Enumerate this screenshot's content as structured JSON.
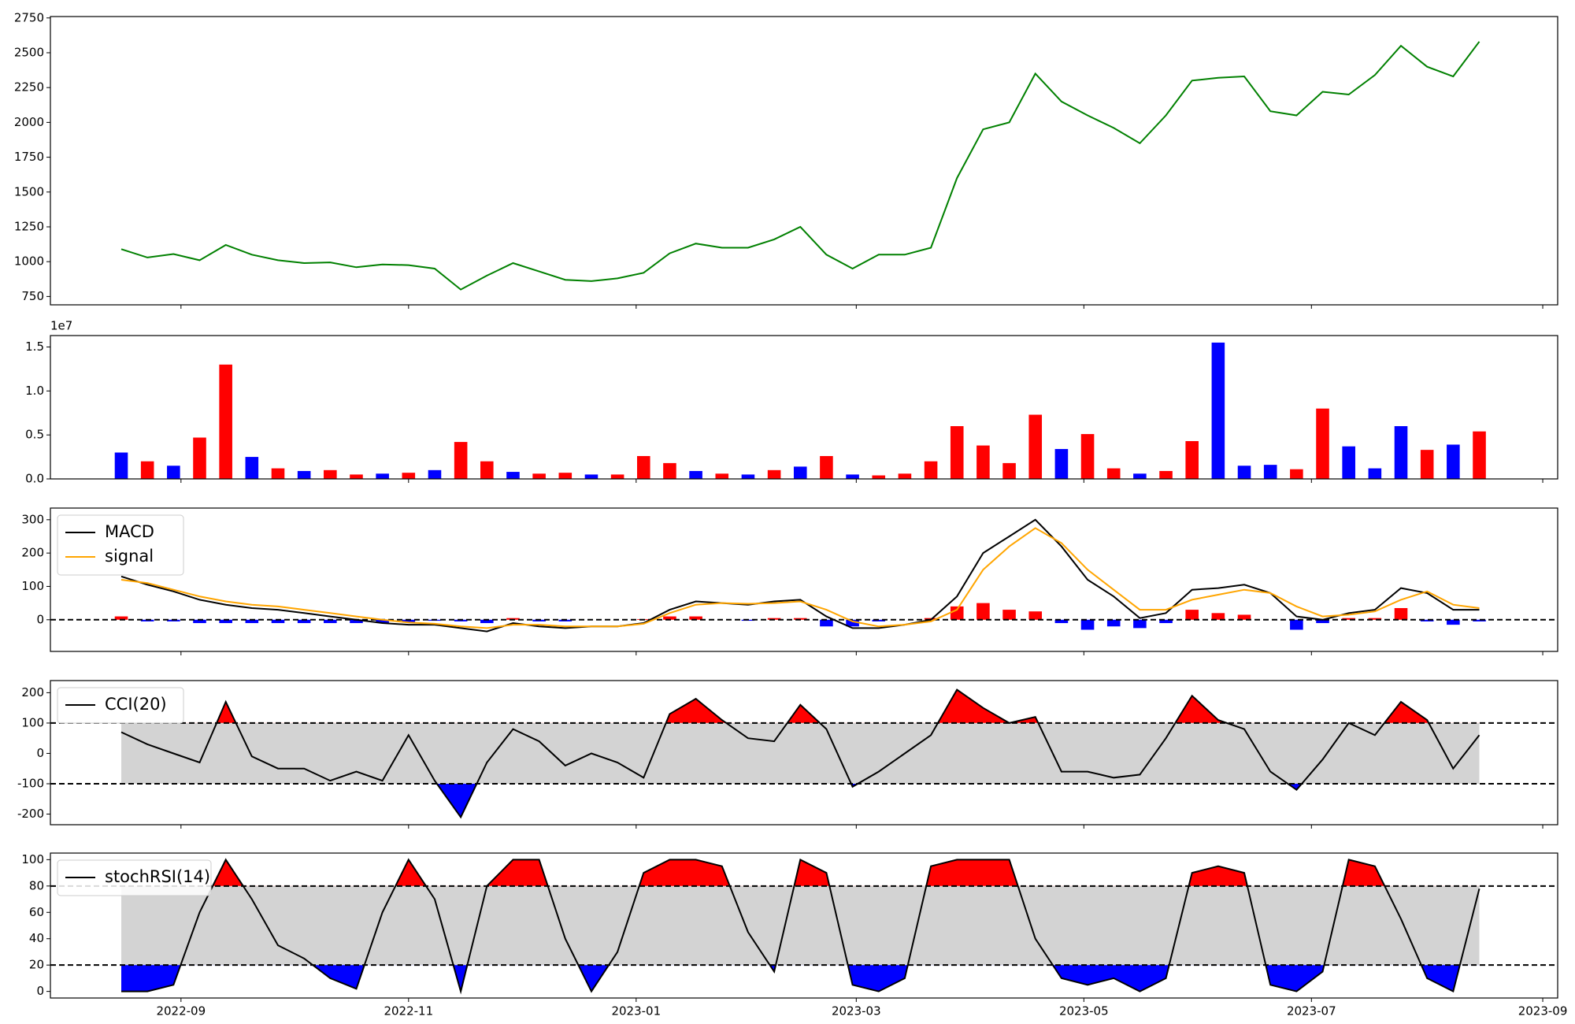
{
  "chart_data": [
    {
      "type": "line",
      "x": [
        "2022-08-16",
        "2022-08-23",
        "2022-08-30",
        "2022-09-06",
        "2022-09-13",
        "2022-09-20",
        "2022-09-27",
        "2022-10-04",
        "2022-10-11",
        "2022-10-18",
        "2022-10-25",
        "2022-11-01",
        "2022-11-08",
        "2022-11-15",
        "2022-11-22",
        "2022-11-29",
        "2022-12-06",
        "2022-12-13",
        "2022-12-20",
        "2022-12-27",
        "2023-01-03",
        "2023-01-10",
        "2023-01-17",
        "2023-01-24",
        "2023-01-31",
        "2023-02-07",
        "2023-02-14",
        "2023-02-21",
        "2023-02-28",
        "2023-03-07",
        "2023-03-14",
        "2023-03-21",
        "2023-03-28",
        "2023-04-04",
        "2023-04-11",
        "2023-04-18",
        "2023-04-25",
        "2023-05-02",
        "2023-05-09",
        "2023-05-16",
        "2023-05-23",
        "2023-05-30",
        "2023-06-06",
        "2023-06-13",
        "2023-06-20",
        "2023-06-27",
        "2023-07-04",
        "2023-07-11",
        "2023-07-18",
        "2023-07-25",
        "2023-08-01",
        "2023-08-08",
        "2023-08-15"
      ],
      "series": [
        {
          "color": "#008000",
          "values": [
            1090,
            1030,
            1055,
            1010,
            1120,
            1050,
            1010,
            990,
            995,
            960,
            980,
            975,
            950,
            800,
            900,
            990,
            930,
            870,
            860,
            880,
            920,
            1060,
            1130,
            1100,
            1100,
            1160,
            1250,
            1050,
            950,
            1050,
            1050,
            1100,
            1600,
            1950,
            2000,
            2350,
            2150,
            2050,
            1960,
            1850,
            2050,
            2300,
            2320,
            2330,
            2080,
            2050,
            2220,
            2200,
            2340,
            2550,
            2400,
            2330,
            2580
          ]
        }
      ],
      "ylim": [
        690,
        2760
      ],
      "yticks": [
        750,
        1000,
        1250,
        1500,
        1750,
        2000,
        2250,
        2500,
        2750
      ]
    },
    {
      "type": "bar",
      "offset_label": "1e7",
      "values": [
        3000000,
        2000000,
        1500000,
        4700000,
        13000000,
        2500000,
        1200000,
        900000,
        1000000,
        500000,
        600000,
        700000,
        1000000,
        4200000,
        2000000,
        800000,
        600000,
        700000,
        500000,
        500000,
        2600000,
        1800000,
        900000,
        600000,
        500000,
        1000000,
        1400000,
        2600000,
        500000,
        400000,
        600000,
        2000000,
        6000000,
        3800000,
        1800000,
        7300000,
        3400000,
        5100000,
        1200000,
        600000,
        900000,
        4300000,
        15500000,
        1500000,
        1600000,
        1100000,
        8000000,
        3700000,
        1200000,
        6000000,
        3300000,
        3900000,
        5400000
      ],
      "colors": [
        "blue",
        "red",
        "blue",
        "red",
        "red",
        "blue",
        "red",
        "blue",
        "red",
        "red",
        "blue",
        "red",
        "blue",
        "red",
        "red",
        "blue",
        "red",
        "red",
        "blue",
        "red",
        "red",
        "red",
        "blue",
        "red",
        "blue",
        "red",
        "blue",
        "red",
        "blue",
        "red",
        "red",
        "red",
        "red",
        "red",
        "red",
        "red",
        "blue",
        "red",
        "red",
        "blue",
        "red",
        "red",
        "blue",
        "blue",
        "blue",
        "red",
        "red",
        "blue",
        "blue",
        "blue",
        "red",
        "blue",
        "red"
      ],
      "ylim": [
        0,
        16300000
      ],
      "yticks": [
        {
          "value": 0,
          "label": "0.0"
        },
        {
          "value": 5000000,
          "label": "0.5"
        },
        {
          "value": 10000000,
          "label": "1.0"
        },
        {
          "value": 15000000,
          "label": "1.5"
        }
      ]
    },
    {
      "type": "macd",
      "series": [
        {
          "name": "MACD",
          "color": "#000000",
          "values": [
            130,
            105,
            85,
            60,
            45,
            35,
            30,
            20,
            10,
            0,
            -10,
            -15,
            -15,
            -25,
            -35,
            -10,
            -20,
            -25,
            -20,
            -20,
            -10,
            30,
            55,
            50,
            45,
            55,
            60,
            10,
            -25,
            -25,
            -15,
            0,
            70,
            200,
            250,
            300,
            220,
            120,
            70,
            5,
            20,
            90,
            95,
            105,
            80,
            10,
            0,
            20,
            30,
            95,
            80,
            30,
            30
          ]
        },
        {
          "name": "signal",
          "color": "#ffa500",
          "values": [
            120,
            110,
            90,
            70,
            55,
            45,
            40,
            30,
            20,
            10,
            0,
            -8,
            -12,
            -20,
            -25,
            -15,
            -15,
            -20,
            -20,
            -20,
            -12,
            20,
            45,
            50,
            48,
            50,
            55,
            30,
            -5,
            -20,
            -15,
            -5,
            30,
            150,
            220,
            275,
            230,
            150,
            90,
            30,
            30,
            60,
            75,
            90,
            80,
            40,
            10,
            15,
            25,
            60,
            85,
            45,
            35
          ]
        }
      ],
      "histogram": {
        "values": [
          10,
          -5,
          -5,
          -10,
          -10,
          -10,
          -10,
          -10,
          -10,
          -10,
          -10,
          -7,
          -3,
          -5,
          -10,
          5,
          -5,
          -5,
          0,
          0,
          2,
          10,
          10,
          0,
          -3,
          5,
          5,
          -20,
          -20,
          -5,
          0,
          5,
          40,
          50,
          30,
          25,
          -10,
          -30,
          -20,
          -25,
          -10,
          30,
          20,
          15,
          0,
          -30,
          -10,
          5,
          5,
          35,
          -5,
          -15,
          -5
        ],
        "pos_color": "red",
        "neg_color": "blue"
      },
      "levels": [
        0
      ],
      "legend": "upper left",
      "ylim": [
        -95,
        335
      ],
      "yticks": [
        0,
        100,
        200,
        300
      ]
    },
    {
      "type": "oscillator",
      "series": [
        {
          "name": "CCI(20)",
          "color": "#000000",
          "values": [
            70,
            30,
            0,
            -30,
            170,
            -10,
            -50,
            -50,
            -90,
            -60,
            -90,
            60,
            -90,
            -210,
            -30,
            80,
            40,
            -40,
            0,
            -30,
            -80,
            130,
            180,
            110,
            50,
            40,
            160,
            80,
            -110,
            -60,
            0,
            60,
            210,
            150,
            100,
            120,
            -60,
            -60,
            -80,
            -70,
            50,
            190,
            110,
            80,
            -60,
            -120,
            -20,
            100,
            60,
            170,
            110,
            -50,
            60
          ]
        }
      ],
      "levels": [
        100,
        -100
      ],
      "band_color": "#d3d3d3",
      "upper_color": "red",
      "lower_color": "blue",
      "legend": "upper left",
      "ylim": [
        -235,
        240
      ],
      "yticks": [
        -200,
        -100,
        0,
        100,
        200
      ]
    },
    {
      "type": "oscillator",
      "series": [
        {
          "name": "stochRSI(14)",
          "color": "#000000",
          "values": [
            0,
            0,
            5,
            60,
            100,
            70,
            35,
            25,
            10,
            2,
            60,
            100,
            70,
            0,
            80,
            100,
            100,
            40,
            0,
            30,
            90,
            100,
            100,
            95,
            45,
            15,
            100,
            90,
            5,
            0,
            10,
            95,
            100,
            100,
            100,
            40,
            10,
            5,
            10,
            0,
            10,
            90,
            95,
            90,
            5,
            0,
            15,
            100,
            95,
            55,
            10,
            0,
            78
          ]
        }
      ],
      "levels": [
        80,
        20
      ],
      "band_color": "#d3d3d3",
      "upper_color": "red",
      "lower_color": "blue",
      "legend": "upper left",
      "ylim": [
        -5,
        105
      ],
      "yticks": [
        0,
        20,
        40,
        60,
        80,
        100
      ],
      "xlim": [
        "2022-07-28",
        "2023-09-05"
      ],
      "xticks": [
        {
          "value": "2022-09-01",
          "label": "2022-09"
        },
        {
          "value": "2022-11-01",
          "label": "2022-11"
        },
        {
          "value": "2023-01-01",
          "label": "2023-01"
        },
        {
          "value": "2023-03-01",
          "label": "2023-03"
        },
        {
          "value": "2023-05-01",
          "label": "2023-05"
        },
        {
          "value": "2023-07-01",
          "label": "2023-07"
        },
        {
          "value": "2023-09-01",
          "label": "2023-09"
        }
      ]
    }
  ]
}
